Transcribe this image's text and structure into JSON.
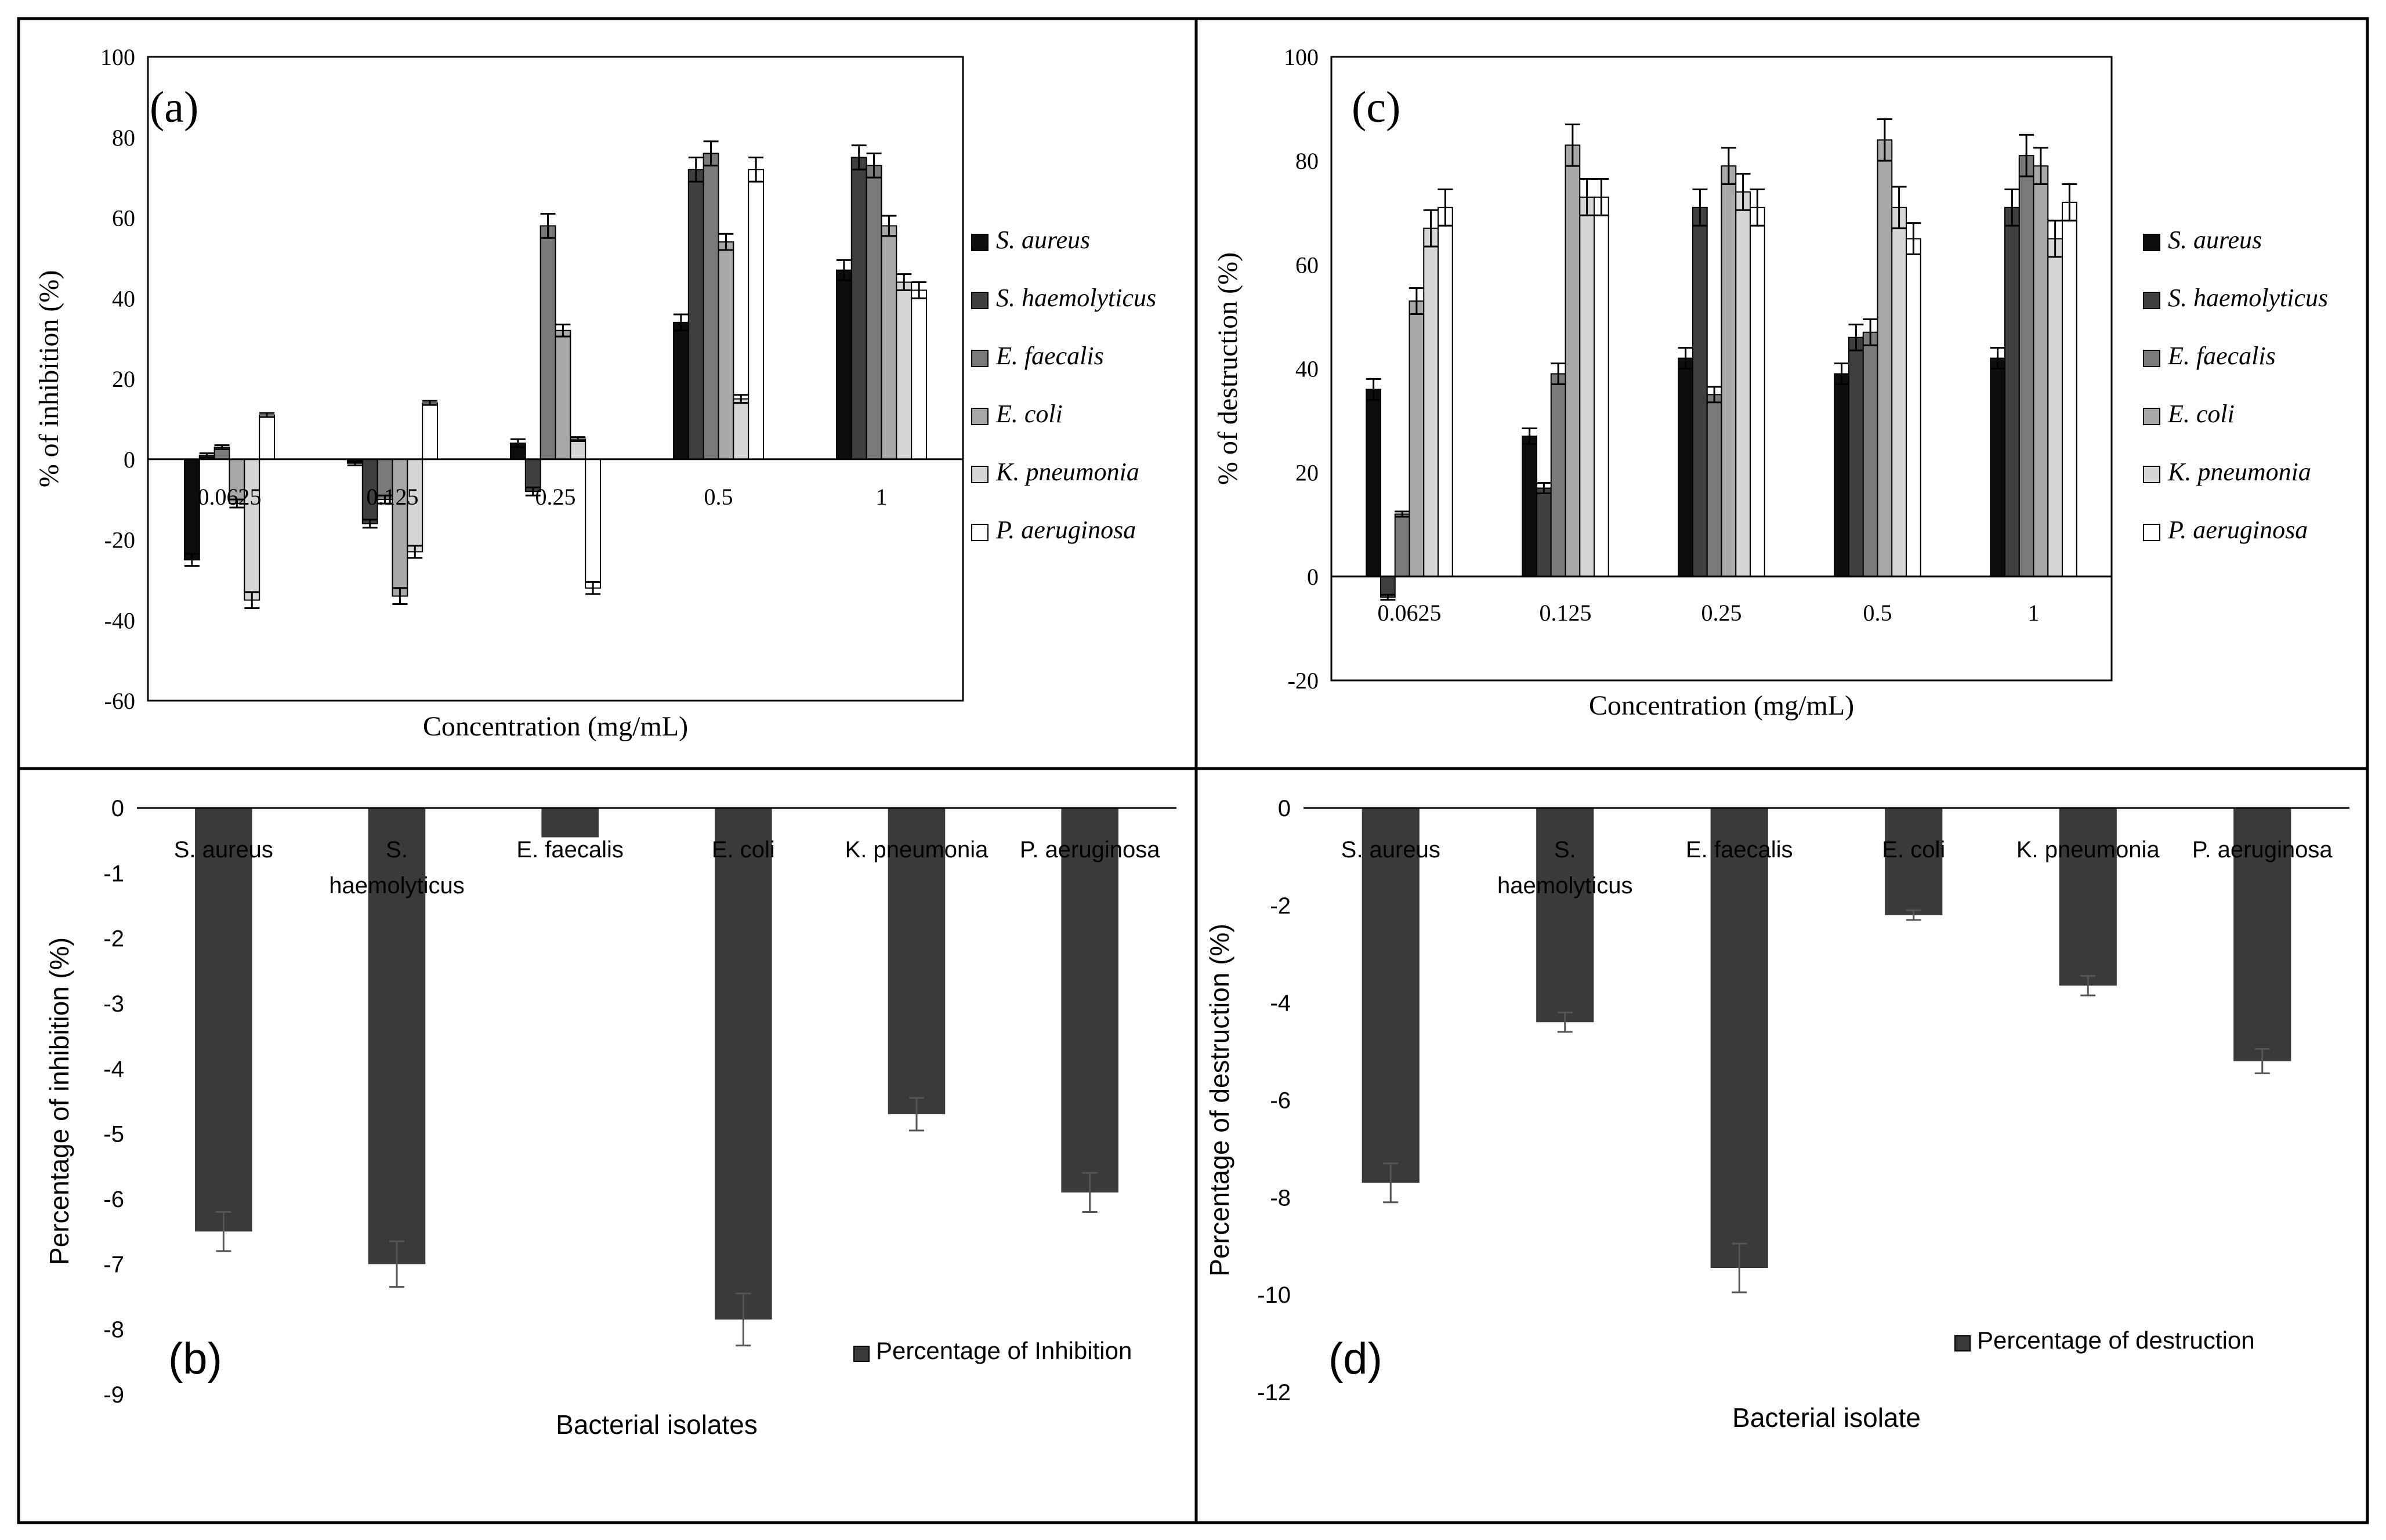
{
  "chart_data": [
    {
      "panel": "(a)",
      "type": "bar",
      "title": "",
      "xlabel": "Concentration (mg/mL)",
      "ylabel": "% of inhibition (%)",
      "ylim": [
        -60,
        100
      ],
      "yticks": [
        -60,
        -40,
        -20,
        0,
        20,
        40,
        60,
        80,
        100
      ],
      "categories": [
        "0.0625",
        "0.125",
        "0.25",
        "0.5",
        "1"
      ],
      "grid": false,
      "legend_position": "right",
      "series": [
        {
          "name": "S. aureus",
          "color": "#0d0d0d",
          "values": [
            -25,
            -1,
            4,
            34,
            47
          ],
          "errors": [
            1.5,
            0.5,
            1,
            2,
            2.5
          ]
        },
        {
          "name": "S. haemolyticus",
          "color": "#3f3f3f",
          "values": [
            1,
            -16,
            -8,
            72,
            75
          ],
          "errors": [
            0.5,
            1,
            1,
            3,
            3
          ]
        },
        {
          "name": "E. faecalis",
          "color": "#7a7a7a",
          "values": [
            3,
            -10,
            58,
            76,
            73
          ],
          "errors": [
            0.5,
            1,
            3,
            3,
            3
          ]
        },
        {
          "name": "E. coli",
          "color": "#a8a8a8",
          "values": [
            -11,
            -34,
            32,
            54,
            58
          ],
          "errors": [
            1,
            2,
            1.5,
            2,
            2.5
          ]
        },
        {
          "name": "K. pneumonia",
          "color": "#d6d6d6",
          "values": [
            -35,
            -23,
            5,
            15,
            44
          ],
          "errors": [
            2,
            1.5,
            0.5,
            1,
            2
          ]
        },
        {
          "name": "P. aeruginosa",
          "color": "#ffffff",
          "values": [
            11,
            14,
            -32,
            72,
            42
          ],
          "errors": [
            0.5,
            0.5,
            1.5,
            3,
            2
          ]
        }
      ]
    },
    {
      "panel": "(b)",
      "type": "bar",
      "title": "",
      "xlabel": "Bacterial isolates",
      "ylabel": "Percentage of inhibition (%)",
      "ylim": [
        -9,
        0
      ],
      "yticks": [
        0,
        -1,
        -2,
        -3,
        -4,
        -5,
        -6,
        -7,
        -8,
        -9
      ],
      "categories": [
        "S. aureus",
        "S. haemolyticus",
        "E. faecalis",
        "E. coli",
        "K. pneumonia",
        "P. aeruginosa"
      ],
      "category_lines": [
        [
          "S. aureus"
        ],
        [
          "S.",
          "haemolyticus"
        ],
        [
          "E. faecalis"
        ],
        [
          "E. coli"
        ],
        [
          "K. pneumonia"
        ],
        [
          "P. aeruginosa"
        ]
      ],
      "grid": false,
      "legend_position": "bottom-right",
      "series": [
        {
          "name": "Percentage of Inhibition",
          "color": "#3a3a3a",
          "values": [
            -6.5,
            -7.0,
            -0.45,
            -7.85,
            -4.7,
            -5.9
          ],
          "errors": [
            0.3,
            0.35,
            0,
            0.4,
            0.25,
            0.3
          ]
        }
      ]
    },
    {
      "panel": "(c)",
      "type": "bar",
      "title": "",
      "xlabel": "Concentration (mg/mL)",
      "ylabel": "% of destruction (%)",
      "ylim": [
        -20,
        100
      ],
      "yticks": [
        -20,
        0,
        20,
        40,
        60,
        80,
        100
      ],
      "categories": [
        "0.0625",
        "0.125",
        "0.25",
        "0.5",
        "1"
      ],
      "grid": false,
      "legend_position": "right",
      "series": [
        {
          "name": "S. aureus",
          "color": "#0d0d0d",
          "values": [
            36,
            27,
            42,
            39,
            42
          ],
          "errors": [
            2,
            1.5,
            2,
            2,
            2
          ]
        },
        {
          "name": "S. haemolyticus",
          "color": "#3f3f3f",
          "values": [
            -4,
            17,
            71,
            46,
            71
          ],
          "errors": [
            0.5,
            1,
            3.5,
            2.5,
            3.5
          ]
        },
        {
          "name": "E. faecalis",
          "color": "#7a7a7a",
          "values": [
            12,
            39,
            35,
            47,
            81
          ],
          "errors": [
            0.5,
            2,
            1.5,
            2.5,
            4
          ]
        },
        {
          "name": "E. coli",
          "color": "#a8a8a8",
          "values": [
            53,
            83,
            79,
            84,
            79
          ],
          "errors": [
            2.5,
            4,
            3.5,
            4,
            3.5
          ]
        },
        {
          "name": "K. pneumonia",
          "color": "#d6d6d6",
          "values": [
            67,
            73,
            74,
            71,
            65
          ],
          "errors": [
            3.5,
            3.5,
            3.5,
            4,
            3.5
          ]
        },
        {
          "name": "P. aeruginosa",
          "color": "#ffffff",
          "values": [
            71,
            73,
            71,
            65,
            72
          ],
          "errors": [
            3.5,
            3.5,
            3.5,
            3,
            3.5
          ]
        }
      ]
    },
    {
      "panel": "(d)",
      "type": "bar",
      "title": "",
      "xlabel": "Bacterial isolate",
      "ylabel": "Percentage of destruction (%)",
      "ylim": [
        -12,
        0
      ],
      "yticks": [
        0,
        -2,
        -4,
        -6,
        -8,
        -10,
        -12
      ],
      "categories": [
        "S. aureus",
        "S. haemolyticus",
        "E. faecalis",
        "E. coli",
        "K. pneumonia",
        "P. aeruginosa"
      ],
      "category_lines": [
        [
          "S. aureus"
        ],
        [
          "S.",
          "haemolyticus"
        ],
        [
          "E. faecalis"
        ],
        [
          "E. coli"
        ],
        [
          "K. pneumonia"
        ],
        [
          "P. aeruginosa"
        ]
      ],
      "grid": false,
      "legend_position": "bottom-right",
      "series": [
        {
          "name": "Percentage of destruction",
          "color": "#3a3a3a",
          "values": [
            -7.7,
            -4.4,
            -9.45,
            -2.2,
            -3.65,
            -5.2
          ],
          "errors": [
            0.4,
            0.2,
            0.5,
            0.1,
            0.2,
            0.25
          ]
        }
      ]
    }
  ]
}
